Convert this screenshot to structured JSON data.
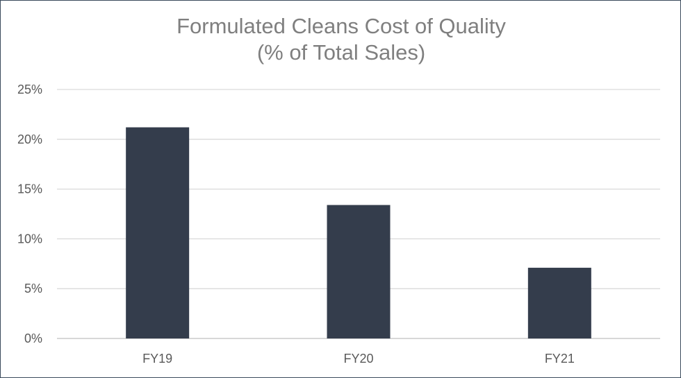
{
  "chart_data": {
    "type": "bar",
    "title_line1": "Formulated Cleans Cost of Quality",
    "title_line2": "(% of Total Sales)",
    "categories": [
      "FY19",
      "FY20",
      "FY21"
    ],
    "values": [
      21.2,
      13.4,
      7.1
    ],
    "unit": "%",
    "ylim": [
      0,
      25
    ],
    "yticks": [
      0,
      5,
      10,
      15,
      20,
      25
    ],
    "ytick_labels": [
      "0%",
      "5%",
      "10%",
      "15%",
      "20%",
      "25%"
    ],
    "grid": true,
    "bar_color": "#343d4c",
    "grid_color": "#d9d9d9",
    "axis_color": "#bfbfbf"
  }
}
